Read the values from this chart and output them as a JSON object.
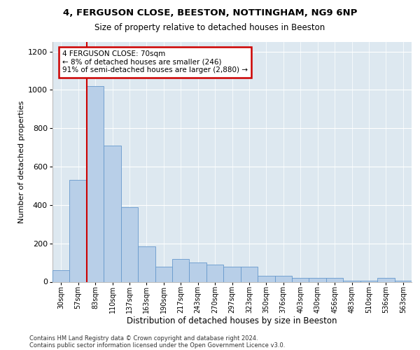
{
  "title1": "4, FERGUSON CLOSE, BEESTON, NOTTINGHAM, NG9 6NP",
  "title2": "Size of property relative to detached houses in Beeston",
  "xlabel": "Distribution of detached houses by size in Beeston",
  "ylabel": "Number of detached properties",
  "footer1": "Contains HM Land Registry data © Crown copyright and database right 2024.",
  "footer2": "Contains public sector information licensed under the Open Government Licence v3.0.",
  "annotation_line1": "4 FERGUSON CLOSE: 70sqm",
  "annotation_line2": "← 8% of detached houses are smaller (246)",
  "annotation_line3": "91% of semi-detached houses are larger (2,880) →",
  "bar_color": "#b8cfe8",
  "bar_edge_color": "#6699cc",
  "ref_line_color": "#cc0000",
  "annotation_edge_color": "#cc0000",
  "background_color": "#dde8f0",
  "grid_color": "#ffffff",
  "categories": [
    "30sqm",
    "57sqm",
    "83sqm",
    "110sqm",
    "137sqm",
    "163sqm",
    "190sqm",
    "217sqm",
    "243sqm",
    "270sqm",
    "297sqm",
    "323sqm",
    "350sqm",
    "376sqm",
    "403sqm",
    "430sqm",
    "456sqm",
    "483sqm",
    "510sqm",
    "536sqm",
    "563sqm"
  ],
  "values": [
    60,
    530,
    1020,
    710,
    390,
    185,
    80,
    120,
    100,
    90,
    80,
    80,
    30,
    30,
    20,
    20,
    20,
    5,
    5,
    20,
    5
  ],
  "ylim": [
    0,
    1250
  ],
  "yticks": [
    0,
    200,
    400,
    600,
    800,
    1000,
    1200
  ],
  "ref_bar_index": 1.5
}
